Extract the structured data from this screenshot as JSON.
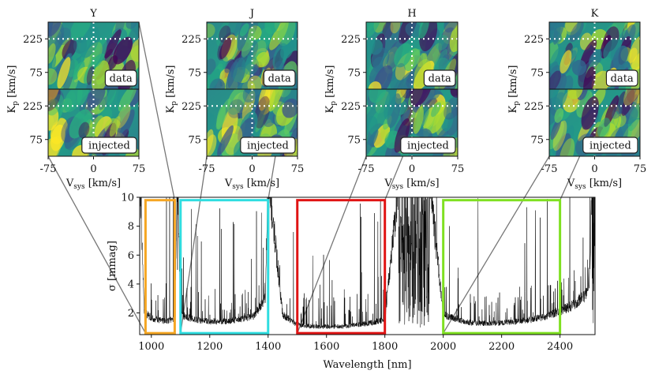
{
  "chart_data": [
    {
      "type": "heatmap",
      "band": "Y",
      "title": "Y",
      "xlabel": "Vsys [km/s]",
      "ylabel": "Kp [km/s]",
      "xticks": [
        "-75",
        "0",
        "75"
      ],
      "yticks": [
        "75",
        "225"
      ],
      "xlim": [
        -75,
        75
      ],
      "ylim": [
        0,
        300
      ],
      "panels": [
        {
          "label": "data",
          "vsys_marker": 0,
          "kp_marker": 225
        },
        {
          "label": "injected",
          "vsys_marker": 0,
          "kp_marker": 225
        }
      ]
    },
    {
      "type": "heatmap",
      "band": "J",
      "title": "J",
      "xlabel": "Vsys [km/s]",
      "ylabel": "Kp [km/s]",
      "xticks": [
        "-75",
        "0",
        "75"
      ],
      "yticks": [
        "75",
        "225"
      ],
      "xlim": [
        -75,
        75
      ],
      "ylim": [
        0,
        300
      ],
      "panels": [
        {
          "label": "data",
          "vsys_marker": 0,
          "kp_marker": 225
        },
        {
          "label": "injected",
          "vsys_marker": 0,
          "kp_marker": 225
        }
      ]
    },
    {
      "type": "heatmap",
      "band": "H",
      "title": "H",
      "xlabel": "Vsys [km/s]",
      "ylabel": "Kp [km/s]",
      "xticks": [
        "-75",
        "0",
        "75"
      ],
      "yticks": [
        "75",
        "225"
      ],
      "xlim": [
        -75,
        75
      ],
      "ylim": [
        0,
        300
      ],
      "panels": [
        {
          "label": "data",
          "vsys_marker": 0,
          "kp_marker": 225
        },
        {
          "label": "injected",
          "vsys_marker": 0,
          "kp_marker": 225
        }
      ]
    },
    {
      "type": "heatmap",
      "band": "K",
      "title": "K",
      "xlabel": "Vsys [km/s]",
      "ylabel": "Kp [km/s]",
      "xticks": [
        "-75",
        "0",
        "75"
      ],
      "yticks": [
        "75",
        "225"
      ],
      "xlim": [
        -75,
        75
      ],
      "ylim": [
        0,
        300
      ],
      "panels": [
        {
          "label": "data",
          "vsys_marker": 0,
          "kp_marker": 225
        },
        {
          "label": "injected",
          "vsys_marker": 0,
          "kp_marker": 225
        }
      ]
    },
    {
      "type": "line",
      "xlabel": "Wavelength [nm]",
      "ylabel": "σ [mmag]",
      "xlim": [
        960,
        2520
      ],
      "ylim": [
        0.5,
        10
      ],
      "xticks": [
        1000,
        1200,
        1400,
        1600,
        1800,
        2000,
        2200,
        2400
      ],
      "yticks": [
        2,
        4,
        6,
        8,
        10
      ],
      "series": [
        {
          "x": [
            960,
            975,
            1000,
            1050,
            1080,
            1090,
            1100,
            1150,
            1200,
            1250,
            1300,
            1350,
            1390,
            1400,
            1450,
            1500,
            1550,
            1600,
            1650,
            1700,
            1750,
            1800,
            1850,
            1900,
            1950,
            2000,
            2050,
            2100,
            2150,
            2200,
            2250,
            2300,
            2350,
            2400,
            2450,
            2500,
            2510
          ],
          "y": [
            10,
            1.8,
            1.4,
            1.2,
            1.4,
            10,
            1.6,
            1.3,
            1.2,
            1.2,
            1.3,
            1.5,
            2.5,
            10,
            1.6,
            1.0,
            0.9,
            0.9,
            0.9,
            1.0,
            1.1,
            1.3,
            10,
            10,
            10,
            1.6,
            1.3,
            1.1,
            1.1,
            1.1,
            1.2,
            1.3,
            1.5,
            1.8,
            2.2,
            3.0,
            10
          ]
        }
      ],
      "band_boxes": [
        {
          "band": "Y",
          "x0": 980,
          "x1": 1080,
          "color": "#f5a623"
        },
        {
          "band": "J",
          "x0": 1100,
          "x1": 1400,
          "color": "#2fdde0"
        },
        {
          "band": "H",
          "x0": 1500,
          "x1": 1800,
          "color": "#e01414"
        },
        {
          "band": "K",
          "x0": 2000,
          "x1": 2400,
          "color": "#7fe021"
        }
      ]
    }
  ]
}
